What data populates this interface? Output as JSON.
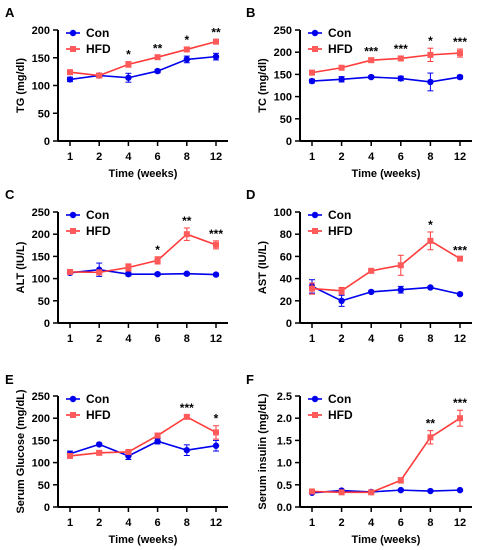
{
  "colors": {
    "con": "#0000ee",
    "hfd": "#ff3b3b",
    "hfd_fill": "#ff5a5a",
    "axis": "#000000"
  },
  "legend": {
    "con": "Con",
    "hfd": "HFD"
  },
  "chart_data": [
    {
      "letter": "A",
      "type": "line",
      "categories": [
        "1",
        "2",
        "4",
        "6",
        "8",
        "12"
      ],
      "xlabel": "Time (weeks)",
      "ylabel": "TG (mg/dl)",
      "ylim": [
        0,
        200
      ],
      "yticks": [
        "0",
        "50",
        "100",
        "150",
        "200"
      ],
      "series": [
        {
          "name": "Con",
          "values": [
            111,
            118,
            114,
            126,
            147,
            152
          ],
          "errors": [
            4,
            3,
            8,
            3,
            6,
            6
          ]
        },
        {
          "name": "HFD",
          "values": [
            124,
            118,
            138,
            151,
            165,
            179
          ],
          "errors": [
            4,
            3,
            5,
            3,
            4,
            4
          ]
        }
      ],
      "stars": [
        "",
        "",
        "*",
        "**",
        "*",
        "**"
      ]
    },
    {
      "letter": "B",
      "type": "line",
      "categories": [
        "1",
        "2",
        "4",
        "6",
        "8",
        "12"
      ],
      "xlabel": "Time (weeks)",
      "ylabel": "TC (mg/dl)",
      "ylim": [
        0,
        250
      ],
      "yticks": [
        "0",
        "50",
        "100",
        "150",
        "200",
        "250"
      ],
      "series": [
        {
          "name": "Con",
          "values": [
            135,
            139,
            144,
            141,
            133,
            144
          ],
          "errors": [
            4,
            6,
            3,
            5,
            20,
            4
          ]
        },
        {
          "name": "HFD",
          "values": [
            154,
            165,
            182,
            186,
            194,
            198
          ],
          "errors": [
            3,
            4,
            4,
            5,
            15,
            9
          ]
        }
      ],
      "stars": [
        "",
        "",
        "***",
        "***",
        "*",
        "***"
      ]
    },
    {
      "letter": "C",
      "type": "line",
      "categories": [
        "1",
        "2",
        "4",
        "6",
        "8",
        "12"
      ],
      "xlabel": "",
      "ylabel": "ALT (IU/L)",
      "ylim": [
        0,
        250
      ],
      "yticks": [
        "0",
        "50",
        "100",
        "150",
        "200",
        "250"
      ],
      "series": [
        {
          "name": "Con",
          "values": [
            113,
            120,
            110,
            110,
            111,
            109
          ],
          "errors": [
            4,
            15,
            4,
            3,
            3,
            3
          ]
        },
        {
          "name": "HFD",
          "values": [
            115,
            114,
            125,
            141,
            200,
            176
          ],
          "errors": [
            5,
            4,
            8,
            8,
            14,
            9
          ]
        }
      ],
      "stars": [
        "",
        "",
        "",
        "*",
        "**",
        "***"
      ]
    },
    {
      "letter": "D",
      "type": "line",
      "categories": [
        "1",
        "2",
        "4",
        "6",
        "8",
        "12"
      ],
      "xlabel": "",
      "ylabel": "AST (IU/L)",
      "ylim": [
        0,
        100
      ],
      "yticks": [
        "0",
        "20",
        "40",
        "60",
        "80",
        "100"
      ],
      "series": [
        {
          "name": "Con",
          "values": [
            33,
            20,
            28,
            30,
            32,
            26
          ],
          "errors": [
            6,
            5,
            1,
            3,
            1,
            1
          ]
        },
        {
          "name": "HFD",
          "values": [
            31,
            29,
            47,
            52,
            74,
            58
          ],
          "errors": [
            5,
            3,
            1,
            9,
            8,
            1
          ]
        }
      ],
      "stars": [
        "",
        "",
        "",
        "",
        "*",
        "***"
      ]
    },
    {
      "letter": "E",
      "type": "line",
      "categories": [
        "1",
        "2",
        "4",
        "6",
        "8",
        "12"
      ],
      "xlabel": "Time (weeks)",
      "ylabel": "Serum Glucose (mg/dL)",
      "ylim": [
        0,
        250
      ],
      "yticks": [
        "0",
        "50",
        "100",
        "150",
        "200",
        "250"
      ],
      "series": [
        {
          "name": "Con",
          "values": [
            120,
            141,
            115,
            148,
            128,
            138
          ],
          "errors": [
            6,
            3,
            8,
            6,
            12,
            12
          ]
        },
        {
          "name": "HFD",
          "values": [
            115,
            122,
            124,
            161,
            203,
            168
          ],
          "errors": [
            4,
            3,
            4,
            5,
            4,
            15
          ]
        }
      ],
      "stars": [
        "",
        "",
        "",
        "",
        "***",
        "*"
      ]
    },
    {
      "letter": "F",
      "type": "line",
      "categories": [
        "1",
        "2",
        "4",
        "6",
        "8",
        "12"
      ],
      "xlabel": "Time (weeks)",
      "ylabel": "Serum insulin (mg/dL)",
      "ylim": [
        0,
        2.5
      ],
      "yticks": [
        "0.0",
        "0.5",
        "1.0",
        "1.5",
        "2.0",
        "2.5"
      ],
      "series": [
        {
          "name": "Con",
          "values": [
            0.32,
            0.37,
            0.34,
            0.38,
            0.36,
            0.38
          ],
          "errors": [
            0.03,
            0.02,
            0.02,
            0.02,
            0.02,
            0.02
          ]
        },
        {
          "name": "HFD",
          "values": [
            0.35,
            0.33,
            0.33,
            0.6,
            1.57,
            2.0
          ],
          "errors": [
            0.03,
            0.02,
            0.02,
            0.06,
            0.15,
            0.18
          ]
        }
      ],
      "stars": [
        "",
        "",
        "",
        "",
        "**",
        "***"
      ]
    }
  ]
}
